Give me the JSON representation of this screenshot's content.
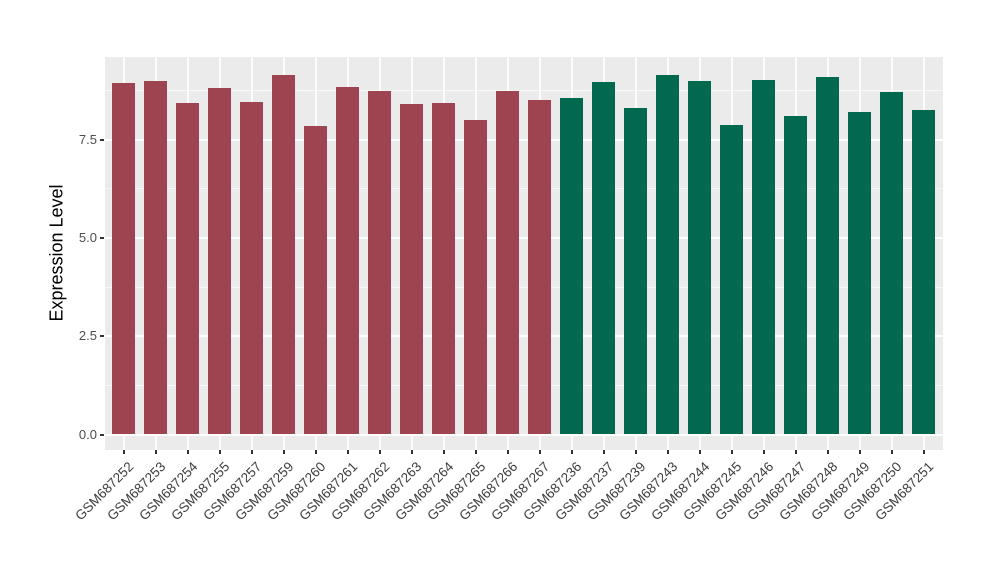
{
  "chart_data": {
    "type": "bar",
    "title": "",
    "xlabel": "",
    "ylabel": "Expression Level",
    "ylim": [
      0,
      9.6
    ],
    "grid": "on",
    "legend": "none",
    "panel_background": "#EBEBEB",
    "gridline_color": "#FFFFFF",
    "yticks": [
      {
        "value": 0.0,
        "label": "0.0"
      },
      {
        "value": 2.5,
        "label": "2.5"
      },
      {
        "value": 5.0,
        "label": "5.0"
      },
      {
        "value": 7.5,
        "label": "7.5"
      }
    ],
    "minor_gridlines": [
      1.25,
      3.75,
      6.25,
      8.75
    ],
    "categories": [
      "GSM687252",
      "GSM687253",
      "GSM687254",
      "GSM687255",
      "GSM687257",
      "GSM687259",
      "GSM687260",
      "GSM687261",
      "GSM687262",
      "GSM687263",
      "GSM687264",
      "GSM687265",
      "GSM687266",
      "GSM687267",
      "GSM687236",
      "GSM687237",
      "GSM687239",
      "GSM687243",
      "GSM687244",
      "GSM687245",
      "GSM687246",
      "GSM687247",
      "GSM687248",
      "GSM687249",
      "GSM687250",
      "GSM687251"
    ],
    "values": [
      8.93,
      9.0,
      8.43,
      8.8,
      8.46,
      9.15,
      7.84,
      8.83,
      8.73,
      8.41,
      8.44,
      7.99,
      8.73,
      8.51,
      8.55,
      8.96,
      8.3,
      9.15,
      8.99,
      7.87,
      9.01,
      8.09,
      9.1,
      8.21,
      8.71,
      8.25
    ],
    "bar_groups": [
      "group1",
      "group1",
      "group1",
      "group1",
      "group1",
      "group1",
      "group1",
      "group1",
      "group1",
      "group1",
      "group1",
      "group1",
      "group1",
      "group1",
      "group2",
      "group2",
      "group2",
      "group2",
      "group2",
      "group2",
      "group2",
      "group2",
      "group2",
      "group2",
      "group2",
      "group2"
    ],
    "group_colors": {
      "group1": "#9E4451",
      "group2": "#00694E"
    }
  }
}
